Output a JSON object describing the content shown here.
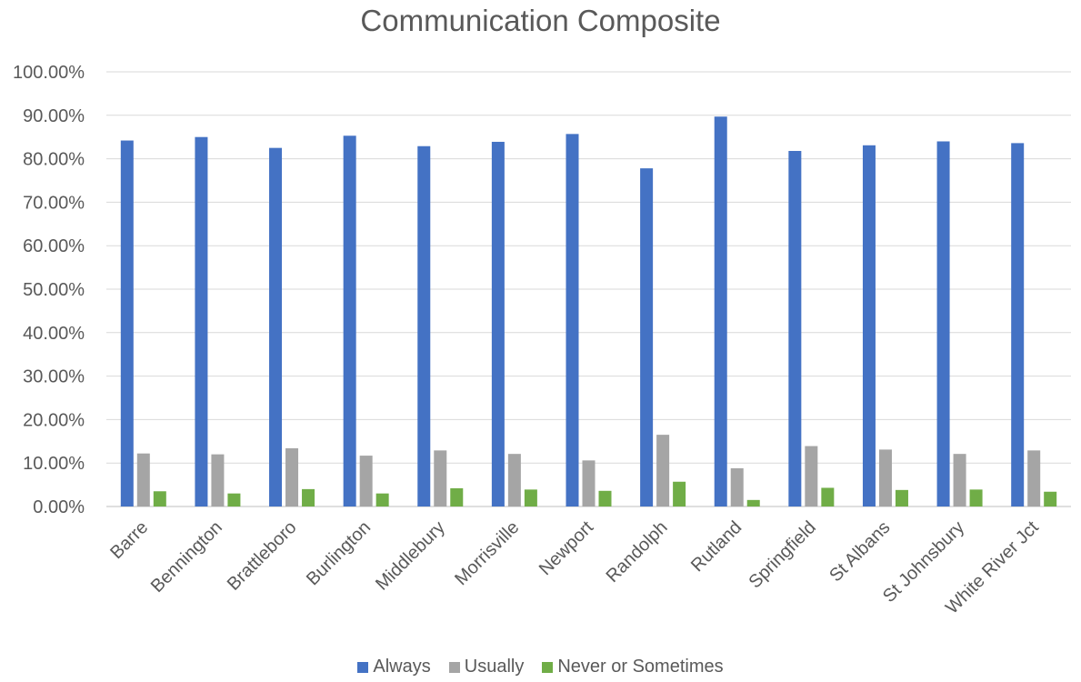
{
  "chart_data": {
    "type": "bar",
    "title": "Communication Composite",
    "xlabel": "",
    "ylabel": "",
    "ylim": [
      0,
      100
    ],
    "yticks": [
      "0.00%",
      "10.00%",
      "20.00%",
      "30.00%",
      "40.00%",
      "50.00%",
      "60.00%",
      "70.00%",
      "80.00%",
      "90.00%",
      "100.00%"
    ],
    "grid": true,
    "legend_position": "bottom",
    "categories": [
      "Barre",
      "Bennington",
      "Brattleboro",
      "Burlington",
      "Middlebury",
      "Morrisville",
      "Newport",
      "Randolph",
      "Rutland",
      "Springfield",
      "St Albans",
      "St Johnsbury",
      "White River Jct"
    ],
    "series": [
      {
        "name": "Always",
        "color": "#4472C4",
        "values": [
          84.2,
          85.0,
          82.5,
          85.3,
          82.9,
          83.9,
          85.7,
          77.8,
          89.7,
          81.8,
          83.1,
          84.0,
          83.6
        ]
      },
      {
        "name": "Usually",
        "color": "#A5A5A5",
        "values": [
          12.2,
          12.0,
          13.4,
          11.7,
          12.9,
          12.1,
          10.6,
          16.5,
          8.8,
          13.9,
          13.1,
          12.1,
          12.9
        ]
      },
      {
        "name": "Never or Sometimes",
        "color": "#70AD47",
        "values": [
          3.5,
          3.0,
          4.0,
          3.0,
          4.2,
          3.9,
          3.6,
          5.7,
          1.5,
          4.3,
          3.8,
          3.9,
          3.4
        ]
      }
    ]
  }
}
